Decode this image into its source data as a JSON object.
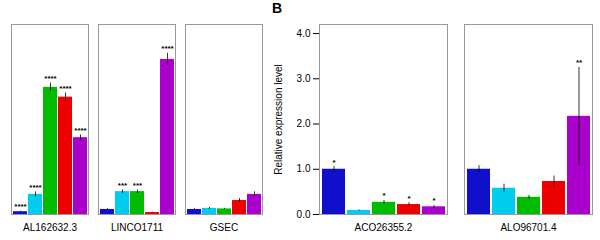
{
  "chart_data": [
    {
      "type": "bar",
      "categories": [
        "AL162632.3",
        "LINCO1711",
        "GSEC"
      ],
      "series": [
        {
          "color": "#1010CC",
          "values": [
            0.1,
            0.18,
            0.18
          ],
          "errors": [
            0.02,
            0.03,
            0.03
          ],
          "annotations": [
            "****",
            null,
            null
          ]
        },
        {
          "color": "#00CCEE",
          "values": [
            0.72,
            0.82,
            0.22
          ],
          "errors": [
            0.09,
            0.06,
            0.03
          ],
          "annotations": [
            "****",
            "***",
            null
          ]
        },
        {
          "color": "#00BB00",
          "values": [
            4.55,
            0.82,
            0.2
          ],
          "errors": [
            0.15,
            0.06,
            0.02
          ],
          "annotations": [
            "****",
            "***",
            null
          ]
        },
        {
          "color": "#EE0000",
          "values": [
            4.2,
            0.07,
            0.5
          ],
          "errors": [
            0.15,
            0.01,
            0.07
          ],
          "annotations": [
            "****",
            null,
            null
          ]
        },
        {
          "color": "#AA00CC",
          "values": [
            2.75,
            5.55,
            0.72
          ],
          "errors": [
            0.1,
            0.22,
            0.09
          ],
          "annotations": [
            "****",
            "****",
            null
          ]
        }
      ],
      "ylim": [
        0,
        6.8
      ],
      "tick_labels": "x"
    },
    {
      "type": "bar",
      "title": "B",
      "categories": [
        "ACO26355.2",
        "ALO96701.4"
      ],
      "series": [
        {
          "color": "#1010CC",
          "values": [
            1.0,
            1.0
          ],
          "errors": [
            0.06,
            0.08
          ],
          "annotations": [
            "*",
            null
          ]
        },
        {
          "color": "#00CCEE",
          "values": [
            0.09,
            0.58
          ],
          "errors": [
            0.01,
            0.09
          ],
          "annotations": [
            null,
            null
          ]
        },
        {
          "color": "#00BB00",
          "values": [
            0.27,
            0.38
          ],
          "errors": [
            0.04,
            0.04
          ],
          "annotations": [
            "*",
            null
          ]
        },
        {
          "color": "#EE0000",
          "values": [
            0.22,
            0.73
          ],
          "errors": [
            0.04,
            0.12
          ],
          "annotations": [
            "*",
            null
          ]
        },
        {
          "color": "#AA00CC",
          "values": [
            0.17,
            2.17
          ],
          "errors": [
            0.03,
            1.08
          ],
          "annotations": [
            "*",
            "**"
          ]
        }
      ],
      "ylim": [
        0,
        4.2
      ],
      "yticks": [
        0,
        1,
        2,
        3,
        4
      ],
      "ylabel": "Relative expression level"
    }
  ]
}
